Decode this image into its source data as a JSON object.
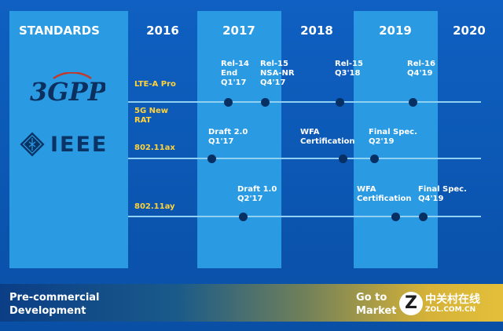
{
  "header": {
    "standards": "STANDARDS",
    "years": [
      "2016",
      "2017",
      "2018",
      "2019",
      "2020"
    ]
  },
  "logos": {
    "gpp": "3GPP",
    "ieee": "IEEE"
  },
  "rows": {
    "lte": "LTE-A Pro",
    "nr": "5G New RAT",
    "ax": "802.11ax",
    "ay": "802.11ay"
  },
  "annotations": {
    "rel14": "Rel-14 End Q1'17",
    "rel15nsa": "Rel-15 NSA-NR Q4'17",
    "rel15": "Rel-15 Q3'18",
    "rel16": "Rel-16 Q4'19",
    "ax_draft": "Draft 2.0 Q1'17",
    "ax_wfa": "WFA Certification",
    "ax_final": "Final Spec. Q2'19",
    "ay_draft": "Draft 1.0 Q2'17",
    "ay_wfa": "WFA Certification",
    "ay_final": "Final Spec. Q4'19"
  },
  "banner": {
    "pre_commercial": "Pre-commercial Development",
    "go_to_market": "Go to Market"
  },
  "watermark": {
    "letter": "Z",
    "cn": "中关村在线",
    "en": "ZOL.COM.CN"
  },
  "colors": {
    "background": "#0c58b4",
    "column": "#2a9be3",
    "timeline": "#8fd0f3",
    "milestone": "#062f63",
    "row_label": "#ffd23a"
  }
}
